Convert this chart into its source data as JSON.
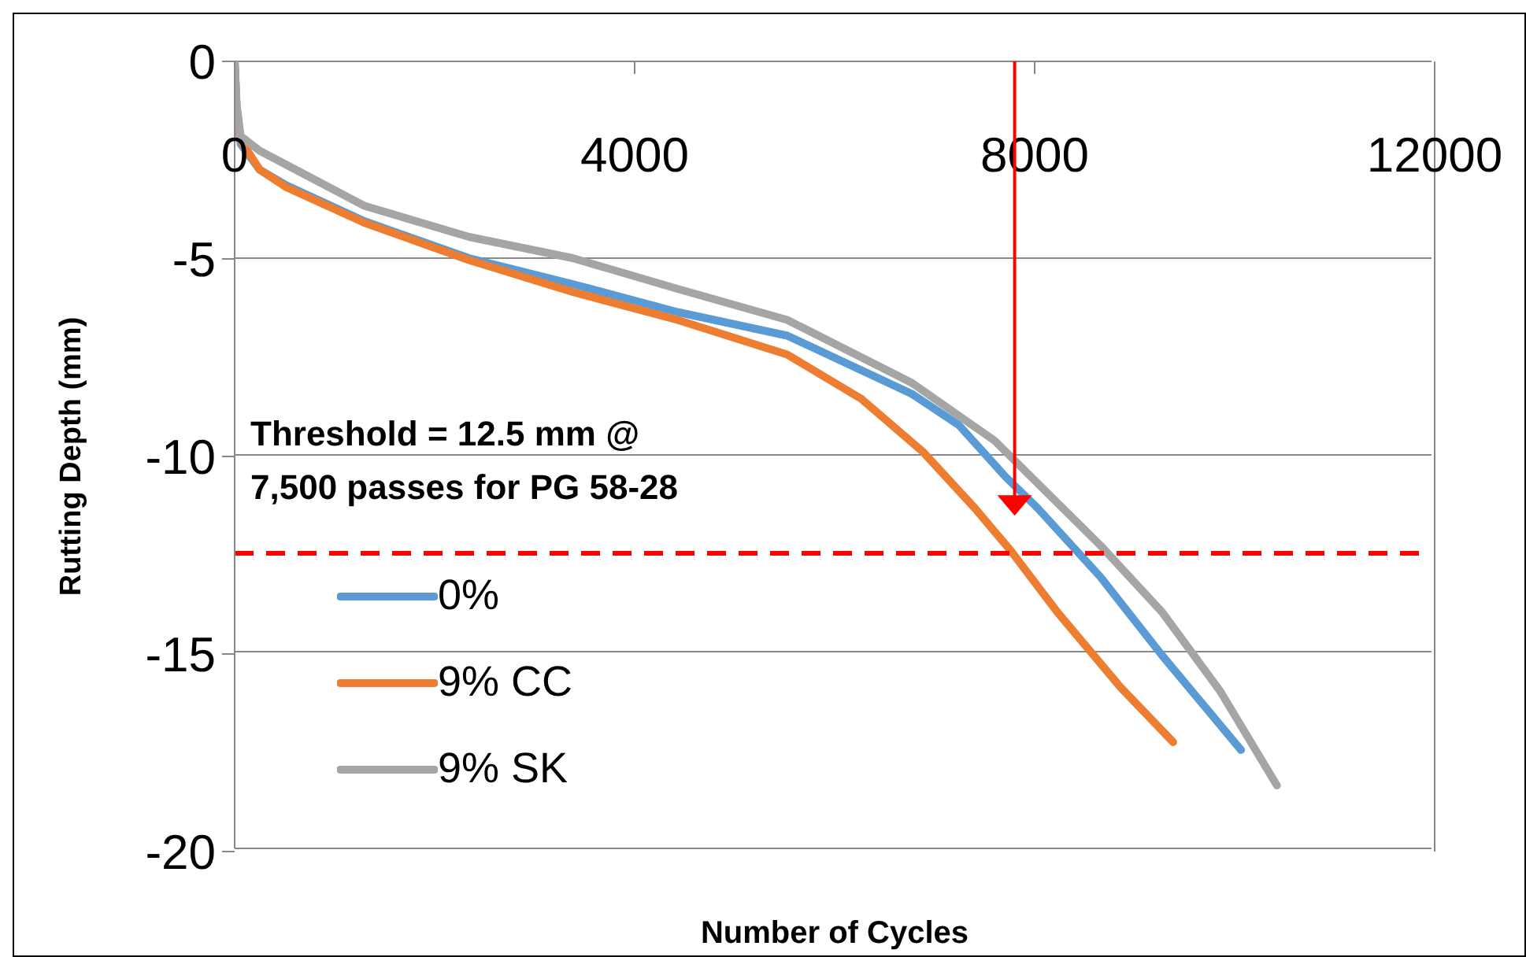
{
  "chart_data": {
    "type": "line",
    "xlabel": "Number of Cycles",
    "ylabel": "Rutting Depth (mm)",
    "xlim": [
      0,
      12000
    ],
    "xticks": [
      0,
      4000,
      8000,
      12000
    ],
    "ylim": [
      -20,
      0
    ],
    "yticks": [
      0,
      -5,
      -10,
      -15,
      -20
    ],
    "grid": "y",
    "legend": "bottom left",
    "marker": "none",
    "line_style": "solid",
    "series": [
      {
        "name": "0%",
        "color": "#5b9bd5",
        "x": [
          0,
          20,
          60,
          250,
          520,
          1300,
          2350,
          3390,
          4440,
          5540,
          6790,
          7260,
          7730,
          8050,
          8680,
          9300,
          10090
        ],
        "values": [
          0,
          -1.2,
          -2.1,
          -2.75,
          -3.15,
          -4.06,
          -5.0,
          -5.66,
          -6.37,
          -6.97,
          -8.45,
          -9.24,
          -10.56,
          -11.35,
          -13.1,
          -15.1,
          -17.5
        ]
      },
      {
        "name": "9% CC",
        "color": "#ed7d31",
        "x": [
          0,
          20,
          60,
          250,
          520,
          1300,
          2350,
          3390,
          4440,
          5540,
          6280,
          6900,
          7420,
          7780,
          8250,
          8880,
          9410
        ],
        "values": [
          0,
          -1.2,
          -2.0,
          -2.75,
          -3.2,
          -4.1,
          -5.05,
          -5.86,
          -6.57,
          -7.45,
          -8.57,
          -9.92,
          -11.35,
          -12.43,
          -14.0,
          -15.9,
          -17.3
        ]
      },
      {
        "name": "9% SK",
        "color": "#a5a5a5",
        "x": [
          0,
          20,
          60,
          250,
          1300,
          2350,
          3390,
          4440,
          5540,
          6790,
          7620,
          8050,
          8680,
          9300,
          9880,
          10450
        ],
        "values": [
          0,
          -1.1,
          -1.9,
          -2.27,
          -3.67,
          -4.46,
          -5.0,
          -5.78,
          -6.57,
          -8.17,
          -9.64,
          -10.72,
          -12.3,
          -14.0,
          -16.0,
          -18.4
        ]
      }
    ],
    "ref_lines": [
      {
        "axis": "y",
        "value": -12.5,
        "color": "#ff0000",
        "line_style": "dashed"
      }
    ],
    "annotations": [
      "Threshold = 12.5 mm @\n7,500 passes for PG 58-28"
    ]
  }
}
